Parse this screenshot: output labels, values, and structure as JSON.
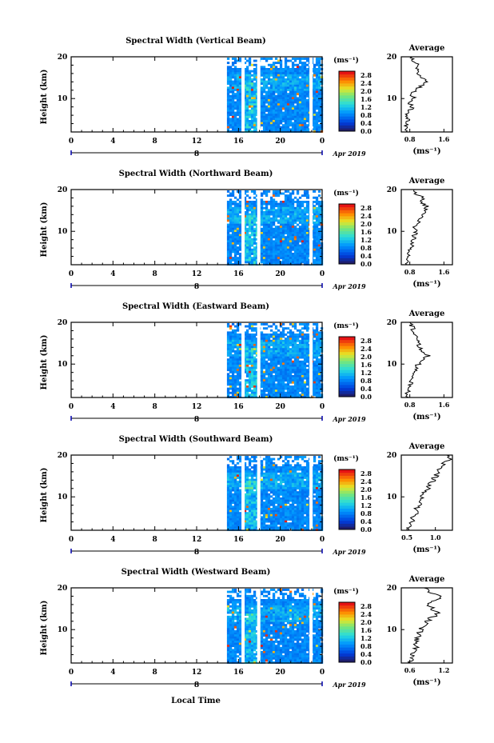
{
  "figure": {
    "x_axis_label": "Local Time",
    "date_label": "Apr 2019",
    "day_tick": "8",
    "colorbar_unit": "(ms⁻¹)",
    "profile_unit": "(ms⁻¹)",
    "profile_title": "Average",
    "y_axis_label": "Height (km)"
  },
  "chart_data": [
    {
      "type": "heatmap",
      "title": "Spectral Width (Vertical Beam)",
      "xlabel": "Local Time",
      "ylabel": "Height (km)",
      "x_ticks": [
        "0",
        "4",
        "8",
        "12",
        "16",
        "20",
        "0"
      ],
      "xlim": [
        0,
        24
      ],
      "y_ticks": [
        "20",
        "10"
      ],
      "ylim": [
        2,
        20
      ],
      "data_start_hour": 14.9,
      "gaps_hours": [
        16.4,
        17.9,
        22.9
      ],
      "colorbar": {
        "ticks": [
          "2.8",
          "2.4",
          "2.0",
          "1.6",
          "1.2",
          "0.8",
          "0.4",
          "0.0"
        ],
        "range": [
          0,
          3.0
        ]
      },
      "profile": {
        "title": "Average",
        "x_ticks": [
          "0.8",
          "1.6"
        ],
        "xlim": [
          0.6,
          1.8
        ],
        "heights": [
          2,
          3,
          4,
          5,
          6,
          7,
          8,
          9,
          10,
          11,
          12,
          13,
          14,
          15,
          16,
          17,
          18,
          19,
          20
        ],
        "values": [
          0.72,
          0.75,
          0.7,
          0.78,
          0.72,
          0.8,
          0.85,
          0.78,
          0.9,
          0.82,
          0.95,
          1.05,
          1.2,
          1.1,
          1.02,
          0.95,
          1.0,
          0.88,
          0.85
        ]
      }
    },
    {
      "type": "heatmap",
      "title": "Spectral Width (Northward Beam)",
      "xlabel": "Local Time",
      "ylabel": "Height (km)",
      "x_ticks": [
        "0",
        "4",
        "8",
        "12",
        "16",
        "20",
        "0"
      ],
      "xlim": [
        0,
        24
      ],
      "y_ticks": [
        "20",
        "10"
      ],
      "ylim": [
        2,
        20
      ],
      "data_start_hour": 14.9,
      "gaps_hours": [
        16.4,
        17.9,
        22.9
      ],
      "colorbar": {
        "ticks": [
          "2.8",
          "2.4",
          "2.0",
          "1.6",
          "1.2",
          "0.8",
          "0.4",
          "0.0"
        ],
        "range": [
          0,
          3.0
        ]
      },
      "profile": {
        "title": "Average",
        "x_ticks": [
          "0.8",
          "1.6"
        ],
        "xlim": [
          0.6,
          1.8
        ],
        "heights": [
          2,
          3,
          4,
          5,
          6,
          7,
          8,
          9,
          10,
          11,
          12,
          13,
          14,
          15,
          16,
          17,
          18,
          19,
          20
        ],
        "values": [
          0.7,
          0.72,
          0.75,
          0.78,
          0.82,
          0.85,
          0.88,
          0.9,
          0.95,
          0.92,
          1.0,
          1.05,
          1.1,
          1.15,
          1.2,
          1.05,
          1.1,
          0.95,
          0.9
        ]
      }
    },
    {
      "type": "heatmap",
      "title": "Spectral Width (Eastward Beam)",
      "xlabel": "Local Time",
      "ylabel": "Height (km)",
      "x_ticks": [
        "0",
        "4",
        "8",
        "12",
        "16",
        "20",
        "0"
      ],
      "xlim": [
        0,
        24
      ],
      "y_ticks": [
        "20",
        "10"
      ],
      "ylim": [
        2,
        20
      ],
      "data_start_hour": 14.9,
      "gaps_hours": [
        16.4,
        17.9,
        22.9
      ],
      "colorbar": {
        "ticks": [
          "2.8",
          "2.4",
          "2.0",
          "1.6",
          "1.2",
          "0.8",
          "0.4",
          "0.0"
        ],
        "range": [
          0,
          3.0
        ]
      },
      "profile": {
        "title": "Average",
        "x_ticks": [
          "0.8",
          "1.6"
        ],
        "xlim": [
          0.6,
          1.8
        ],
        "heights": [
          2,
          3,
          4,
          5,
          6,
          7,
          8,
          9,
          10,
          11,
          12,
          13,
          14,
          15,
          16,
          17,
          18,
          19,
          20
        ],
        "values": [
          0.72,
          0.74,
          0.78,
          0.8,
          0.85,
          0.88,
          0.9,
          0.95,
          1.0,
          1.1,
          1.25,
          1.1,
          1.05,
          1.0,
          0.95,
          0.9,
          0.88,
          0.85,
          0.8
        ]
      }
    },
    {
      "type": "heatmap",
      "title": "Spectral Width (Southward Beam)",
      "xlabel": "Local Time",
      "ylabel": "Height (km)",
      "x_ticks": [
        "0",
        "4",
        "8",
        "12",
        "16",
        "20",
        "0"
      ],
      "xlim": [
        0,
        24
      ],
      "y_ticks": [
        "20",
        "10"
      ],
      "ylim": [
        2,
        20
      ],
      "data_start_hour": 14.9,
      "gaps_hours": [
        16.4,
        17.9,
        22.9
      ],
      "colorbar": {
        "ticks": [
          "2.8",
          "2.4",
          "2.0",
          "1.6",
          "1.2",
          "0.8",
          "0.4",
          "0.0"
        ],
        "range": [
          0,
          3.0
        ]
      },
      "profile": {
        "title": "Average",
        "x_ticks": [
          "0.5",
          "1.0"
        ],
        "xlim": [
          0.4,
          1.3
        ],
        "heights": [
          2,
          3,
          4,
          5,
          6,
          7,
          8,
          9,
          10,
          11,
          12,
          13,
          14,
          15,
          16,
          17,
          18,
          19,
          20
        ],
        "values": [
          0.55,
          0.58,
          0.6,
          0.62,
          0.65,
          0.68,
          0.7,
          0.72,
          0.75,
          0.8,
          0.85,
          0.9,
          0.95,
          1.0,
          1.05,
          1.1,
          1.15,
          1.25,
          1.2
        ]
      }
    },
    {
      "type": "heatmap",
      "title": "Spectral Width (Westward Beam)",
      "xlabel": "Local Time",
      "ylabel": "Height (km)",
      "x_ticks": [
        "0",
        "4",
        "8",
        "12",
        "16",
        "20",
        "0"
      ],
      "xlim": [
        0,
        24
      ],
      "y_ticks": [
        "20",
        "10"
      ],
      "ylim": [
        2,
        20
      ],
      "data_start_hour": 14.9,
      "gaps_hours": [
        16.4,
        17.9,
        22.9
      ],
      "colorbar": {
        "ticks": [
          "2.8",
          "2.4",
          "2.0",
          "1.6",
          "1.2",
          "0.8",
          "0.4",
          "0.0"
        ],
        "range": [
          0,
          3.0
        ]
      },
      "profile": {
        "title": "Average",
        "x_ticks": [
          "0.6",
          "1.2"
        ],
        "xlim": [
          0.45,
          1.35
        ],
        "heights": [
          2,
          3,
          4,
          5,
          6,
          7,
          8,
          9,
          10,
          11,
          12,
          13,
          14,
          15,
          16,
          17,
          18,
          19,
          20
        ],
        "values": [
          0.6,
          0.62,
          0.65,
          0.68,
          0.7,
          0.72,
          0.75,
          0.78,
          0.8,
          0.85,
          0.9,
          1.0,
          1.1,
          1.0,
          0.95,
          1.05,
          1.2,
          0.9,
          0.85
        ]
      }
    }
  ]
}
